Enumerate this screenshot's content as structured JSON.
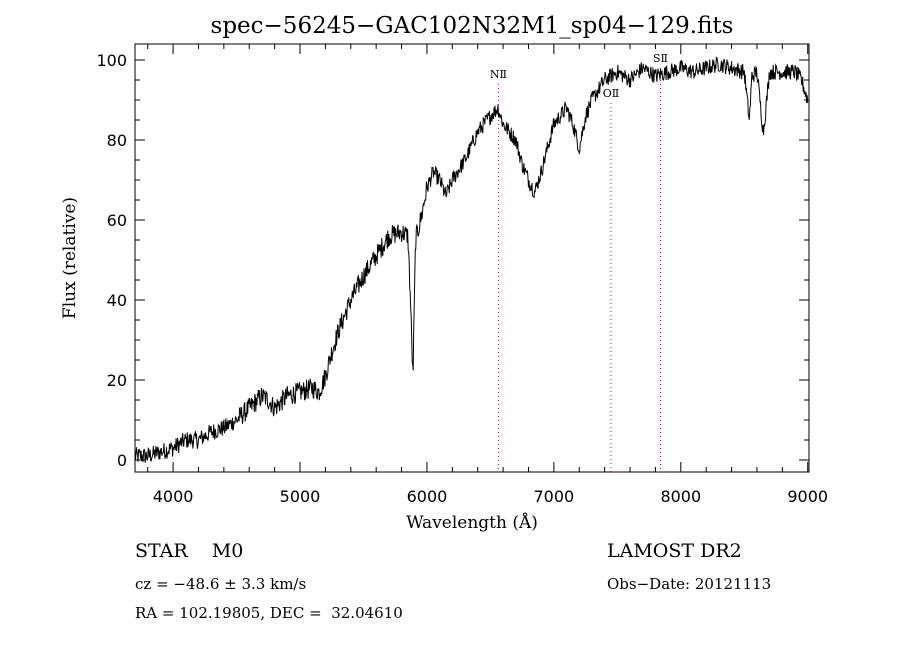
{
  "chart_data": {
    "type": "line",
    "title": "spec−56245−GAC102N32M1_sp04−129.fits",
    "xlabel": "Wavelength (Å)",
    "ylabel": "Flux (relative)",
    "xlim": [
      3700,
      9010
    ],
    "ylim": [
      -3,
      104
    ],
    "xticks": [
      4000,
      5000,
      6000,
      7000,
      8000,
      9000
    ],
    "yticks": [
      0,
      20,
      40,
      60,
      80,
      100
    ],
    "series": [
      {
        "x": [
          3700,
          3800,
          3900,
          4000,
          4100,
          4200,
          4300,
          4400,
          4500,
          4600,
          4700,
          4750,
          4800,
          4900,
          5000,
          5100,
          5150,
          5200,
          5250,
          5300,
          5400,
          5500,
          5600,
          5700,
          5800,
          5850,
          5870,
          5890,
          5910,
          5950,
          6000,
          6050,
          6100,
          6150,
          6200,
          6300,
          6400,
          6500,
          6560,
          6600,
          6650,
          6700,
          6750,
          6800,
          6850,
          6900,
          6950,
          7000,
          7050,
          7100,
          7150,
          7200,
          7250,
          7300,
          7400,
          7500,
          7600,
          7700,
          7800,
          7900,
          8000,
          8100,
          8200,
          8300,
          8400,
          8500,
          8540,
          8560,
          8600,
          8650,
          8700,
          8800,
          8900,
          8950,
          9000
        ],
        "y": [
          1,
          1,
          2,
          3,
          5,
          5,
          7,
          8,
          10,
          13,
          16,
          15,
          13,
          16,
          17,
          18,
          17,
          21,
          27,
          32,
          40,
          46,
          51,
          56,
          57,
          56,
          40,
          20,
          55,
          60,
          68,
          72,
          70,
          66,
          70,
          75,
          82,
          86,
          88,
          84,
          82,
          80,
          74,
          70,
          67,
          72,
          78,
          84,
          86,
          88,
          84,
          78,
          86,
          90,
          95,
          97,
          95,
          98,
          96,
          97,
          98,
          97,
          98,
          99,
          98,
          97,
          85,
          96,
          97,
          82,
          97,
          97,
          97,
          95,
          90
        ]
      }
    ],
    "annotations": [
      {
        "label": "NⅡ",
        "x": 6563
      },
      {
        "label": "OⅡ",
        "x": 7450
      },
      {
        "label": "SⅡ",
        "x": 7840
      }
    ],
    "annotation_color": "#ff0000"
  },
  "info": {
    "class": "STAR    M0",
    "survey": "LAMOST DR2",
    "cz": "cz = −48.6 ± 3.3 km/s",
    "obsdate": "Obs−Date: 20121113",
    "radec": "RA = 102.19805, DEC =  32.04610"
  }
}
